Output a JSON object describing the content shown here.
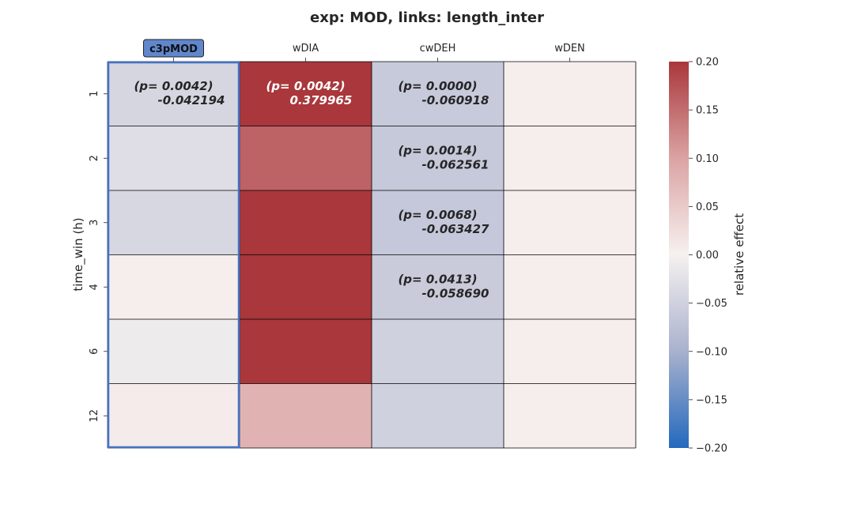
{
  "chart_data": {
    "type": "heatmap",
    "title": "exp: MOD, links: length_inter",
    "xlabel": "",
    "ylabel": "time_win (h)",
    "x_categories": [
      "c3pMOD",
      "wDIA",
      "cwDEH",
      "wDEN"
    ],
    "y_categories": [
      "1",
      "2",
      "3",
      "4",
      "6",
      "12"
    ],
    "values": [
      [
        -0.042194,
        0.379965,
        -0.060918,
        0.004
      ],
      [
        -0.03,
        0.16,
        -0.062561,
        0.004
      ],
      [
        -0.04,
        0.3,
        -0.063427,
        0.004
      ],
      [
        0.004,
        0.3,
        -0.05869,
        0.004
      ],
      [
        -0.01,
        0.3,
        -0.05,
        0.004
      ],
      [
        0.008,
        0.08,
        -0.05,
        0.004
      ]
    ],
    "annotations": [
      {
        "row": 0,
        "col": 0,
        "line1": "(p= 0.0042)",
        "line2": "-0.042194"
      },
      {
        "row": 0,
        "col": 1,
        "line1": "(p= 0.0042)",
        "line2": "0.379965"
      },
      {
        "row": 0,
        "col": 2,
        "line1": "(p= 0.0000)",
        "line2": "-0.060918"
      },
      {
        "row": 1,
        "col": 2,
        "line1": "(p= 0.0014)",
        "line2": "-0.062561"
      },
      {
        "row": 2,
        "col": 2,
        "line1": "(p= 0.0068)",
        "line2": "-0.063427"
      },
      {
        "row": 3,
        "col": 2,
        "line1": "(p= 0.0413)",
        "line2": "-0.058690"
      }
    ],
    "highlight_column": "c3pMOD",
    "highlight_color": "#4472C4",
    "colorbar": {
      "label": "relative effect",
      "vmin": -0.2,
      "vmax": 0.2,
      "ticks": [
        "0.20",
        "0.15",
        "0.10",
        "0.05",
        "0.00",
        "−0.05",
        "−0.10",
        "−0.15",
        "−0.20"
      ],
      "tick_values": [
        0.2,
        0.15,
        0.1,
        0.05,
        0.0,
        -0.05,
        -0.1,
        -0.15,
        -0.2
      ],
      "colormap": "vlag",
      "color_stops": [
        "#2369bd",
        "#a9b1cd",
        "#f6f1f0",
        "#dba3a3",
        "#a9373b"
      ]
    },
    "grid": true,
    "legend": "none"
  }
}
